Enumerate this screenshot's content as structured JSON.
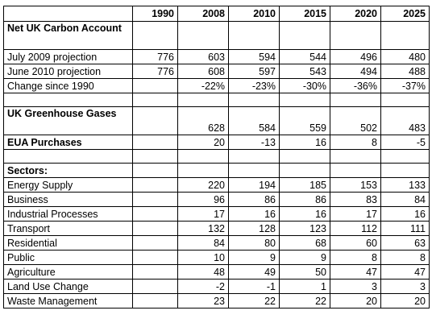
{
  "headers": [
    "",
    "1990",
    "2008",
    "2010",
    "2015",
    "2020",
    "2025"
  ],
  "sections": [
    {
      "title": "Net UK Carbon Account",
      "rows": [
        {
          "label": "July 2009 projection",
          "values": [
            "776",
            "603",
            "594",
            "544",
            "496",
            "480"
          ]
        },
        {
          "label": "June 2010 projection",
          "values": [
            "776",
            "608",
            "597",
            "543",
            "494",
            "488"
          ]
        },
        {
          "label": "Change since 1990",
          "values": [
            "",
            "-22%",
            "-23%",
            "-30%",
            "-36%",
            "-37%"
          ]
        }
      ]
    },
    {
      "rows": [
        {
          "label": "UK Greenhouse Gases",
          "bold": true,
          "values": [
            "",
            "628",
            "584",
            "559",
            "502",
            "483"
          ]
        },
        {
          "label": "EUA Purchases",
          "bold": true,
          "values": [
            "",
            "20",
            "-13",
            "16",
            "8",
            "-5"
          ]
        }
      ]
    },
    {
      "title": "Sectors:",
      "rows": [
        {
          "label": "Energy Supply",
          "values": [
            "",
            "220",
            "194",
            "185",
            "153",
            "133"
          ]
        },
        {
          "label": "Business",
          "values": [
            "",
            "96",
            "86",
            "86",
            "83",
            "84"
          ]
        },
        {
          "label": "Industrial Processes",
          "values": [
            "",
            "17",
            "16",
            "16",
            "17",
            "16"
          ]
        },
        {
          "label": "Transport",
          "values": [
            "",
            "132",
            "128",
            "123",
            "112",
            "111"
          ]
        },
        {
          "label": "Residential",
          "values": [
            "",
            "84",
            "80",
            "68",
            "60",
            "63"
          ]
        },
        {
          "label": "Public",
          "values": [
            "",
            "10",
            "9",
            "9",
            "8",
            "8"
          ]
        },
        {
          "label": "Agriculture",
          "values": [
            "",
            "48",
            "49",
            "50",
            "47",
            "47"
          ]
        },
        {
          "label": "Land Use Change",
          "values": [
            "",
            "-2",
            "-1",
            "1",
            "3",
            "3"
          ]
        },
        {
          "label": "Waste Management",
          "values": [
            "",
            "23",
            "22",
            "22",
            "20",
            "20"
          ]
        }
      ]
    }
  ]
}
